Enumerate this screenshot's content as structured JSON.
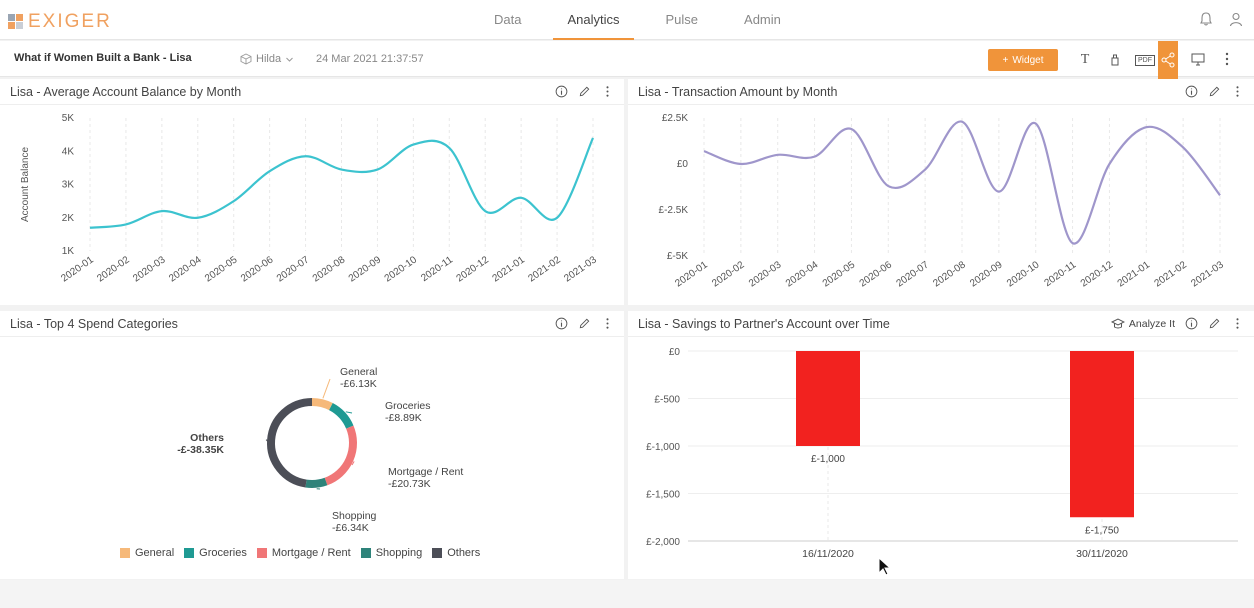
{
  "app": {
    "brand": "EXIGER"
  },
  "nav": {
    "items": [
      "Data",
      "Analytics",
      "Pulse",
      "Admin"
    ],
    "active": "Analytics"
  },
  "dashboard": {
    "title": "What if Women Built a Bank - Lisa",
    "owner": "Hilda",
    "timestamp": "24 Mar 2021 21:37:57",
    "widget_label": "Widget",
    "toolbar": {
      "text_icon": "T",
      "pdf_label": "PDF"
    }
  },
  "panels": {
    "balance": {
      "title": "Lisa - Average Account Balance by Month"
    },
    "transaction": {
      "title": "Lisa - Transaction Amount by Month"
    },
    "spend": {
      "title": "Lisa - Top 4 Spend Categories"
    },
    "savings": {
      "title": "Lisa - Savings to Partner's Account over Time",
      "analyze_label": "Analyze It"
    }
  },
  "chart_data": [
    {
      "type": "line",
      "title": "Lisa - Average Account Balance by Month",
      "ylabel": "Account Balance",
      "x": [
        "2020-01",
        "2020-02",
        "2020-03",
        "2020-04",
        "2020-05",
        "2020-06",
        "2020-07",
        "2020-08",
        "2020-09",
        "2020-10",
        "2020-11",
        "2020-12",
        "2021-01",
        "2021-02",
        "2021-03"
      ],
      "values": [
        1700,
        1800,
        2200,
        2000,
        2500,
        3400,
        3850,
        3450,
        3450,
        4200,
        4100,
        2200,
        2600,
        2000,
        4400
      ],
      "yticks": [
        "1K",
        "2K",
        "3K",
        "4K",
        "5K"
      ],
      "ylim": [
        1000,
        5000
      ],
      "color": "#3cc3cf"
    },
    {
      "type": "line",
      "title": "Lisa - Transaction Amount by Month",
      "x": [
        "2020-01",
        "2020-02",
        "2020-03",
        "2020-04",
        "2020-05",
        "2020-06",
        "2020-07",
        "2020-08",
        "2020-09",
        "2020-10",
        "2020-11",
        "2020-12",
        "2021-01",
        "2021-02",
        "2021-03"
      ],
      "values": [
        700,
        0,
        500,
        400,
        1900,
        -1200,
        -300,
        2300,
        -1500,
        2200,
        -4300,
        0,
        2000,
        900,
        -1700
      ],
      "yticks": [
        "£-5K",
        "£-2.5K",
        "£0",
        "£2.5K"
      ],
      "ylim": [
        -5000,
        2500
      ],
      "color": "#9f96cb"
    },
    {
      "type": "pie",
      "title": "Lisa - Top 4 Spend Categories",
      "labels": [
        "General",
        "Groceries",
        "Mortgage / Rent",
        "Shopping",
        "Others"
      ],
      "value_labels": [
        "-£6.13K",
        "-£8.89K",
        "-£20.73K",
        "-£6.34K",
        "-£-38.35K"
      ],
      "values": [
        6.13,
        8.89,
        20.73,
        6.34,
        38.35
      ],
      "colors": [
        "#f6b97a",
        "#1f9a93",
        "#f07677",
        "#2e837a",
        "#4c4e57"
      ]
    },
    {
      "type": "bar",
      "title": "Lisa - Savings to Partner's Account over Time",
      "categories": [
        "16/11/2020",
        "30/11/2020"
      ],
      "values": [
        -1000,
        -1750
      ],
      "value_labels": [
        "£-1,000",
        "£-1,750"
      ],
      "yticks": [
        "£-2,000",
        "£-1,500",
        "£-1,000",
        "£-500",
        "£0"
      ],
      "ylim": [
        -2000,
        0
      ],
      "color": "#f2221f"
    }
  ]
}
